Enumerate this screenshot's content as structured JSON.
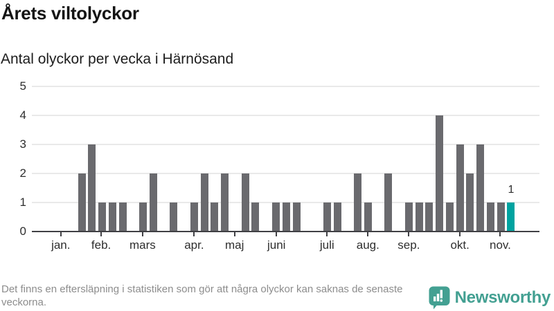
{
  "header": {
    "title": "Årets viltolyckor",
    "subtitle": "Antal olyckor per vecka i Härnösand"
  },
  "chart_data": {
    "type": "bar",
    "title": "Årets viltolyckor",
    "subtitle": "Antal olyckor per vecka i Härnösand",
    "x_unit": "week of year",
    "values": [
      0,
      0,
      0,
      0,
      2,
      3,
      1,
      1,
      1,
      0,
      1,
      2,
      0,
      1,
      0,
      1,
      2,
      1,
      2,
      0,
      2,
      1,
      0,
      1,
      1,
      1,
      0,
      0,
      1,
      1,
      0,
      2,
      1,
      0,
      2,
      0,
      1,
      1,
      1,
      4,
      1,
      3,
      2,
      3,
      1,
      1,
      1
    ],
    "first_week": 1,
    "last_week": 47,
    "ylim": [
      0,
      5
    ],
    "y_ticks": [
      0,
      1,
      2,
      3,
      4,
      5
    ],
    "grid": "horizontal",
    "bar_color": "#6a6a6e",
    "highlight_color": "#00a3a0",
    "highlight_index": 46,
    "highlight_label": "1",
    "month_ticks": [
      {
        "label": "jan.",
        "week": 2.95
      },
      {
        "label": "feb.",
        "week": 6.9
      },
      {
        "label": "mars",
        "week": 10.95
      },
      {
        "label": "apr.",
        "week": 16.0
      },
      {
        "label": "maj",
        "week": 19.95
      },
      {
        "label": "juni",
        "week": 24.05
      },
      {
        "label": "juli",
        "week": 29.0
      },
      {
        "label": "aug.",
        "week": 33.0
      },
      {
        "label": "sep.",
        "week": 37.0
      },
      {
        "label": "okt.",
        "week": 42.0
      },
      {
        "label": "nov.",
        "week": 45.95
      }
    ]
  },
  "footer": {
    "note": "Det finns en eftersläpning i statistiken som gör att några olyckor kan saknas de senaste veckorna.",
    "brand": "Newsworthy"
  }
}
